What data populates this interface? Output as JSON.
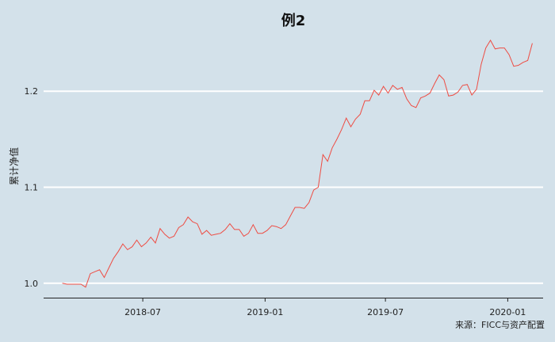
{
  "chart_data": {
    "type": "line",
    "title": "例2",
    "ylabel": "累计净值",
    "source": "来源：FICC与资产配置",
    "ylim": [
      0.985,
      1.262
    ],
    "xlim": [
      "2018-02-03",
      "2020-02-22"
    ],
    "y_ticks": [
      {
        "value": 1.0,
        "label": "1.0"
      },
      {
        "value": 1.1,
        "label": "1.1"
      },
      {
        "value": 1.2,
        "label": "1.2"
      }
    ],
    "x_ticks": [
      {
        "value": "2018-07-01",
        "label": "2018-07"
      },
      {
        "value": "2019-01-01",
        "label": "2019-01"
      },
      {
        "value": "2019-07-01",
        "label": "2019-07"
      },
      {
        "value": "2020-01-01",
        "label": "2020-01"
      }
    ],
    "grid": "horizontal",
    "line_color": "#ee4c43",
    "background_color": "#d3e1ea",
    "series": [
      {
        "x": [
          "2018-03-02",
          "2018-03-09",
          "2018-03-16",
          "2018-03-23",
          "2018-03-30",
          "2018-04-06",
          "2018-04-13",
          "2018-04-20",
          "2018-04-27",
          "2018-05-04",
          "2018-05-11",
          "2018-05-18",
          "2018-05-25",
          "2018-06-01",
          "2018-06-08",
          "2018-06-15",
          "2018-06-22",
          "2018-06-29",
          "2018-07-06",
          "2018-07-13",
          "2018-07-20",
          "2018-07-27",
          "2018-08-03",
          "2018-08-10",
          "2018-08-17",
          "2018-08-24",
          "2018-08-31",
          "2018-09-07",
          "2018-09-14",
          "2018-09-21",
          "2018-09-28",
          "2018-10-05",
          "2018-10-12",
          "2018-10-19",
          "2018-10-26",
          "2018-11-02",
          "2018-11-09",
          "2018-11-16",
          "2018-11-23",
          "2018-11-30",
          "2018-12-07",
          "2018-12-14",
          "2018-12-21",
          "2018-12-28",
          "2019-01-04",
          "2019-01-11",
          "2019-01-18",
          "2019-01-25",
          "2019-02-01",
          "2019-02-08",
          "2019-02-15",
          "2019-02-22",
          "2019-03-01",
          "2019-03-08",
          "2019-03-15",
          "2019-03-22",
          "2019-03-29",
          "2019-04-05",
          "2019-04-12",
          "2019-04-19",
          "2019-04-26",
          "2019-05-03",
          "2019-05-10",
          "2019-05-17",
          "2019-05-24",
          "2019-05-31",
          "2019-06-07",
          "2019-06-14",
          "2019-06-21",
          "2019-06-28",
          "2019-07-05",
          "2019-07-12",
          "2019-07-19",
          "2019-07-26",
          "2019-08-02",
          "2019-08-09",
          "2019-08-16",
          "2019-08-23",
          "2019-08-30",
          "2019-09-06",
          "2019-09-13",
          "2019-09-20",
          "2019-09-27",
          "2019-10-04",
          "2019-10-11",
          "2019-10-18",
          "2019-10-25",
          "2019-11-01",
          "2019-11-08",
          "2019-11-15",
          "2019-11-22",
          "2019-11-29",
          "2019-12-06",
          "2019-12-13",
          "2019-12-20",
          "2019-12-27",
          "2020-01-03",
          "2020-01-10",
          "2020-01-17",
          "2020-01-24",
          "2020-01-31",
          "2020-02-07"
        ],
        "values": [
          1.0,
          0.999,
          0.999,
          0.999,
          0.999,
          0.996,
          1.01,
          1.012,
          1.014,
          1.006,
          1.016,
          1.026,
          1.033,
          1.041,
          1.035,
          1.038,
          1.045,
          1.038,
          1.042,
          1.048,
          1.042,
          1.057,
          1.051,
          1.047,
          1.049,
          1.058,
          1.061,
          1.069,
          1.064,
          1.062,
          1.051,
          1.055,
          1.05,
          1.051,
          1.052,
          1.056,
          1.062,
          1.056,
          1.056,
          1.049,
          1.052,
          1.061,
          1.052,
          1.052,
          1.055,
          1.06,
          1.059,
          1.057,
          1.061,
          1.07,
          1.079,
          1.079,
          1.078,
          1.084,
          1.097,
          1.1,
          1.134,
          1.127,
          1.141,
          1.15,
          1.16,
          1.172,
          1.163,
          1.171,
          1.176,
          1.19,
          1.19,
          1.201,
          1.196,
          1.205,
          1.198,
          1.206,
          1.202,
          1.204,
          1.192,
          1.185,
          1.183,
          1.193,
          1.195,
          1.198,
          1.208,
          1.217,
          1.212,
          1.195,
          1.196,
          1.199,
          1.206,
          1.207,
          1.196,
          1.202,
          1.228,
          1.245,
          1.253,
          1.244,
          1.245,
          1.245,
          1.238,
          1.226,
          1.227,
          1.23,
          1.232,
          1.25
        ]
      }
    ]
  }
}
